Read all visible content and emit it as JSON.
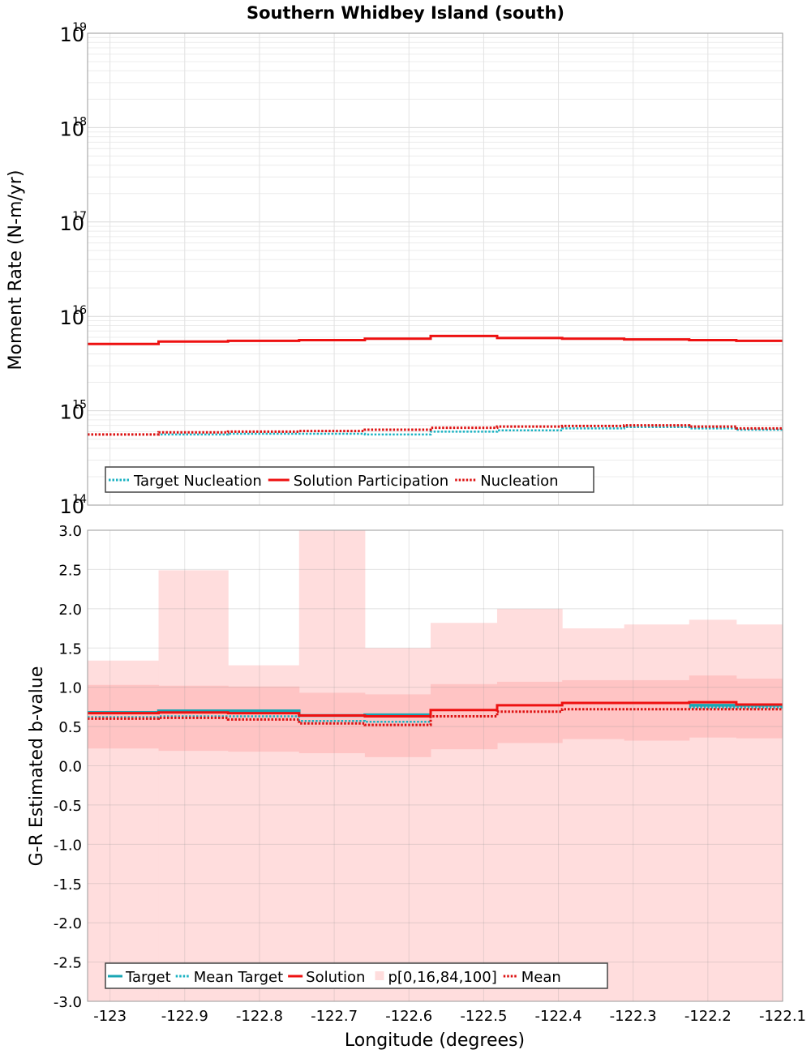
{
  "chart_data": {
    "title": "Southern Whidbey Island (south)",
    "x_axis": {
      "label": "Longitude (degrees)",
      "range": [
        -123.03,
        -122.1
      ],
      "ticks": [
        -123,
        -122.9,
        -122.8,
        -122.7,
        -122.6,
        -122.5,
        -122.4,
        -122.3,
        -122.2,
        -122.1
      ],
      "tick_labels": [
        "-123",
        "-122.9",
        "-122.8",
        "-122.7",
        "-122.6",
        "-122.5",
        "-122.4",
        "-122.3",
        "-122.2",
        "-122.1"
      ]
    },
    "bin_edges": [
      -123.03,
      -122.935,
      -122.842,
      -122.747,
      -122.659,
      -122.571,
      -122.482,
      -122.395,
      -122.312,
      -122.225,
      -122.162,
      -122.1
    ],
    "panels": [
      {
        "name": "moment-rate",
        "type": "line",
        "scale": "log",
        "ylabel": "Moment Rate (N-m/yr)",
        "ylim_exp": [
          14,
          19
        ],
        "yticks": [
          {
            "base": "10",
            "exp": "14"
          },
          {
            "base": "10",
            "exp": "15"
          },
          {
            "base": "10",
            "exp": "16"
          },
          {
            "base": "10",
            "exp": "17"
          },
          {
            "base": "10",
            "exp": "18"
          },
          {
            "base": "10",
            "exp": "19"
          }
        ],
        "series": [
          {
            "name": "Target Nucleation",
            "color": "#19b2c2",
            "dashed": true,
            "width": 2.5,
            "values": [
              560000000000000.0,
              560000000000000.0,
              570000000000000.0,
              570000000000000.0,
              560000000000000.0,
              600000000000000.0,
              620000000000000.0,
              650000000000000.0,
              670000000000000.0,
              650000000000000.0,
              630000000000000.0
            ]
          },
          {
            "name": "Solution Participation",
            "color": "#ee1111",
            "dashed": false,
            "width": 3,
            "values": [
              5100000000000000.0,
              5400000000000000.0,
              5500000000000000.0,
              5600000000000000.0,
              5800000000000000.0,
              6200000000000000.0,
              5900000000000000.0,
              5800000000000000.0,
              5700000000000000.0,
              5600000000000000.0,
              5500000000000000.0
            ]
          },
          {
            "name": "Nucleation",
            "color": "#dd1111",
            "dashed": true,
            "width": 3,
            "values": [
              560000000000000.0,
              590000000000000.0,
              600000000000000.0,
              610000000000000.0,
              630000000000000.0,
              660000000000000.0,
              680000000000000.0,
              690000000000000.0,
              700000000000000.0,
              680000000000000.0,
              650000000000000.0
            ]
          }
        ],
        "legend": [
          "Target Nucleation",
          "Solution Participation",
          "Nucleation"
        ]
      },
      {
        "name": "b-value",
        "type": "line",
        "scale": "linear",
        "ylabel": "G-R Estimated b-value",
        "ylim": [
          -3.0,
          3.0
        ],
        "yticks": [
          -3.0,
          -2.5,
          -2.0,
          -1.5,
          -1.0,
          -0.5,
          0.0,
          0.5,
          1.0,
          1.5,
          2.0,
          2.5,
          3.0
        ],
        "ytick_labels": [
          "-3.0",
          "-2.5",
          "-2.0",
          "-1.5",
          "-1.0",
          "-0.5",
          "0.0",
          "0.5",
          "1.0",
          "1.5",
          "2.0",
          "2.5",
          "3.0"
        ],
        "percentile_band": {
          "name": "p[0,16,84,100]",
          "outer_color": "#ffdddd",
          "inner_color": "#ffc4c4",
          "p0": [
            -3.0,
            -3.0,
            -3.0,
            -3.0,
            -3.0,
            -3.0,
            -3.0,
            -3.0,
            -3.0,
            -3.0,
            -3.0
          ],
          "p16": [
            0.22,
            0.19,
            0.18,
            0.16,
            0.11,
            0.21,
            0.29,
            0.34,
            0.32,
            0.36,
            0.35
          ],
          "p84": [
            1.03,
            1.02,
            1.01,
            0.93,
            0.91,
            1.04,
            1.07,
            1.09,
            1.09,
            1.15,
            1.11
          ],
          "p100": [
            1.34,
            2.49,
            1.28,
            3.0,
            1.5,
            1.82,
            2.0,
            1.75,
            1.8,
            1.86,
            1.8
          ]
        },
        "series": [
          {
            "name": "Target",
            "color": "#19a6b4",
            "dashed": false,
            "width": 3.5,
            "values": [
              0.68,
              0.7,
              0.7,
              0.64,
              0.65,
              null,
              null,
              null,
              null,
              0.77,
              0.77
            ]
          },
          {
            "name": "Mean Target",
            "color": "#19b2c2",
            "dashed": true,
            "width": 2.5,
            "values": [
              0.62,
              0.63,
              0.63,
              0.57,
              0.56,
              null,
              null,
              null,
              null,
              0.74,
              0.74
            ]
          },
          {
            "name": "Solution",
            "color": "#ee1111",
            "dashed": false,
            "width": 3,
            "values": [
              0.67,
              0.68,
              0.67,
              0.64,
              0.63,
              0.71,
              0.77,
              0.8,
              0.8,
              0.81,
              0.78
            ]
          },
          {
            "name": "Mean",
            "color": "#dd1111",
            "dashed": true,
            "width": 3,
            "values": [
              0.6,
              0.61,
              0.59,
              0.54,
              0.52,
              0.63,
              0.69,
              0.72,
              0.72,
              0.72,
              0.72
            ]
          }
        ],
        "legend": [
          "Target",
          "Mean Target",
          "Solution",
          "p[0,16,84,100]",
          "Mean"
        ]
      }
    ]
  }
}
